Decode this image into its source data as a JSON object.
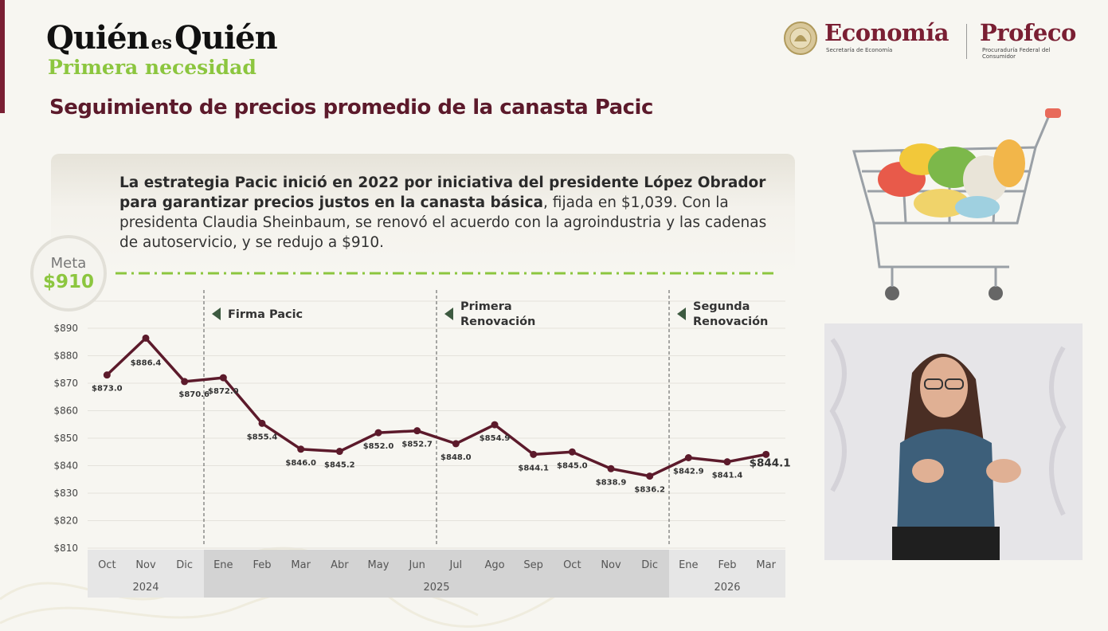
{
  "header": {
    "logo_main_left": "Quién",
    "logo_main_mid": "es",
    "logo_main_right": "Quién",
    "logo_sub": "Primera necesidad",
    "economia": "Economía",
    "economia_sub": "Secretaría de Economía",
    "profeco": "Profeco",
    "profeco_sub": "Procuraduría Federal del Consumidor"
  },
  "page_title": "Seguimiento de precios promedio de la canasta Pacic",
  "info": {
    "bold": "La estrategia Pacic inició en 2022 por iniciativa del presidente López Obrador para garantizar precios justos en la canasta básica",
    "rest": ", fijada en $1,039. Con la presidenta Claudia Sheinbaum, se renovó el acuerdo con la agroindustria y las cadenas de autoservicio, y se redujo a $910."
  },
  "meta": {
    "label": "Meta",
    "value": "$910"
  },
  "colors": {
    "line": "#5c1a2b",
    "goal": "#8cc63f",
    "accent": "#7a1f33",
    "annotation_arrow": "#3d5a40"
  },
  "chart_data": {
    "type": "line",
    "categories": [
      "Oct",
      "Nov",
      "Dic",
      "Ene",
      "Feb",
      "Mar",
      "Abr",
      "May",
      "Jun",
      "Jul",
      "Ago",
      "Sep",
      "Oct",
      "Nov",
      "Dic",
      "Ene",
      "Feb",
      "Mar"
    ],
    "years": [
      {
        "label": "2024",
        "start": 0,
        "end": 2
      },
      {
        "label": "2025",
        "start": 3,
        "end": 14
      },
      {
        "label": "2026",
        "start": 15,
        "end": 17
      }
    ],
    "values": [
      873.0,
      886.4,
      870.6,
      872.0,
      855.4,
      846.0,
      845.2,
      852.0,
      852.7,
      848.0,
      854.9,
      844.1,
      845.0,
      838.9,
      836.2,
      842.9,
      841.4,
      844.1
    ],
    "data_labels": [
      "$873.0",
      "$886.4",
      "$870.6",
      "$872.0",
      "$855.4",
      "$846.0",
      "$845.2",
      "$852.0",
      "$852.7",
      "$848.0",
      "$854.9",
      "$844.1",
      "$845.0",
      "$838.9",
      "$836.2",
      "$842.9",
      "$841.4",
      "$844.1"
    ],
    "ylim": [
      810,
      890
    ],
    "yticks": [
      890,
      880,
      870,
      860,
      850,
      840,
      830,
      820,
      810
    ],
    "ytick_labels": [
      "$890",
      "$880",
      "$870",
      "$860",
      "$850",
      "$840",
      "$830",
      "$820",
      "$810"
    ],
    "goal": 910,
    "grid": true,
    "annotations": [
      {
        "position": 2,
        "lines": [
          "Firma Pacic"
        ]
      },
      {
        "position": 8,
        "lines": [
          "Primera",
          "Renovación"
        ]
      },
      {
        "position": 14,
        "lines": [
          "Segunda",
          "Renovación"
        ]
      }
    ]
  }
}
